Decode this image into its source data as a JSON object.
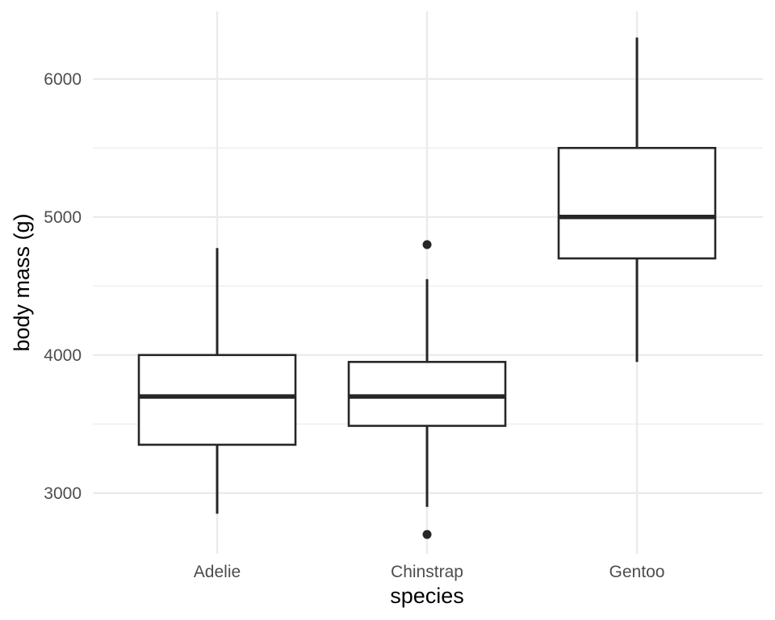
{
  "chart_data": {
    "type": "boxplot",
    "xlabel": "species",
    "ylabel": "body mass (g)",
    "ylim": [
      2560,
      6490
    ],
    "y_ticks": [
      3000,
      4000,
      5000,
      6000
    ],
    "y_minor_ticks": [
      3500,
      4500,
      5500
    ],
    "grid": true,
    "categories": [
      "Adelie",
      "Chinstrap",
      "Gentoo"
    ],
    "boxes": [
      {
        "category": "Adelie",
        "whisker_low": 2850,
        "q1": 3350,
        "median": 3700,
        "q3": 4000,
        "whisker_high": 4775,
        "outliers": []
      },
      {
        "category": "Chinstrap",
        "whisker_low": 2900,
        "q1": 3487,
        "median": 3700,
        "q3": 3950,
        "whisker_high": 4550,
        "outliers": [
          2700,
          4800
        ]
      },
      {
        "category": "Gentoo",
        "whisker_low": 3950,
        "q1": 4700,
        "median": 5000,
        "q3": 5500,
        "whisker_high": 6300,
        "outliers": []
      }
    ],
    "colors": {
      "box_stroke": "#262626",
      "box_fill": "#ffffff",
      "grid": "#ebebeb",
      "tick_text": "#4d4d4d",
      "title_text": "#000000"
    }
  }
}
